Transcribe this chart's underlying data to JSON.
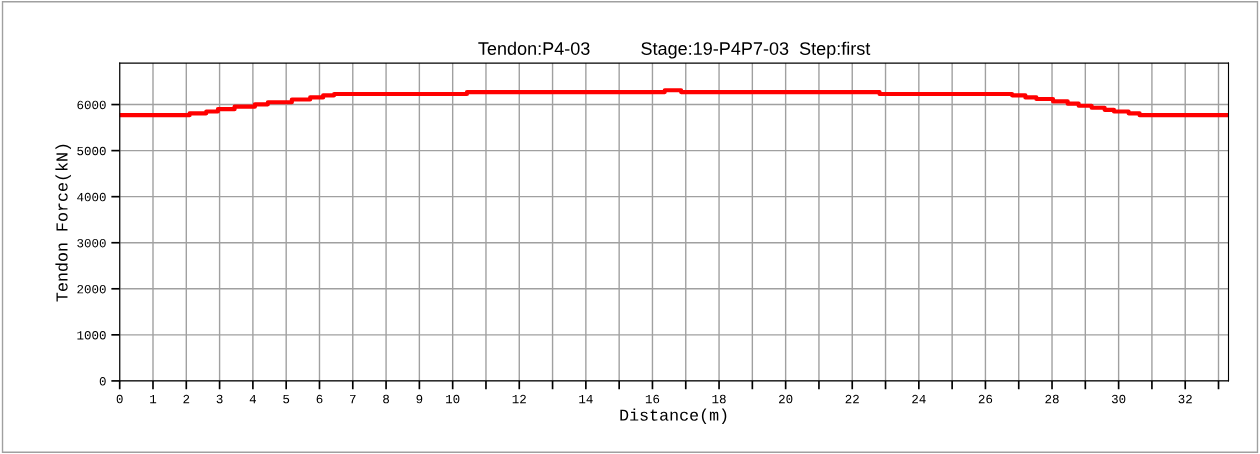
{
  "chart_data": {
    "type": "step",
    "title": "Tendon:P4-03          Stage:19-P4P7-03  Step:first",
    "xlabel": "Distance(m)",
    "ylabel": "Tendon Force(kN)",
    "x": [
      0,
      2.1,
      2.6,
      2.95,
      3.45,
      4.06,
      4.45,
      5.17,
      5.72,
      6.11,
      6.44,
      10.43,
      16.37,
      16.86,
      22.82,
      26.8,
      27.2,
      27.53,
      28.03,
      28.47,
      28.8,
      29.19,
      29.58,
      29.86,
      30.3,
      30.63,
      33.3
    ],
    "series": [
      {
        "color": "#ff0000",
        "values": [
          5770,
          5810,
          5850,
          5900,
          5955,
          6005,
          6050,
          6110,
          6155,
          6200,
          6230,
          6270,
          6310,
          6270,
          6230,
          6200,
          6155,
          6120,
          6070,
          6020,
          5975,
          5930,
          5885,
          5850,
          5810,
          5770,
          5770
        ]
      }
    ],
    "xlim": [
      0,
      33.3
    ],
    "ylim": [
      0,
      6900
    ],
    "xticks": [
      0,
      1,
      2,
      3,
      4,
      5,
      6,
      7,
      8,
      9,
      10,
      {
        "value": 11,
        "label": null
      },
      12,
      {
        "value": 13,
        "label": null
      },
      14,
      {
        "value": 15,
        "label": null
      },
      16,
      {
        "value": 17,
        "label": null
      },
      18,
      {
        "value": 19,
        "label": null
      },
      20,
      {
        "value": 21,
        "label": null
      },
      22,
      {
        "value": 23,
        "label": null
      },
      24,
      {
        "value": 25,
        "label": null
      },
      26,
      {
        "value": 27,
        "label": null
      },
      28,
      {
        "value": 29,
        "label": null
      },
      30,
      {
        "value": 31,
        "label": null
      },
      32,
      {
        "value": 33,
        "label": null
      }
    ],
    "yticks": [
      0,
      1000,
      2000,
      3000,
      4000,
      5000,
      6000
    ],
    "grid": true,
    "legend": false
  }
}
